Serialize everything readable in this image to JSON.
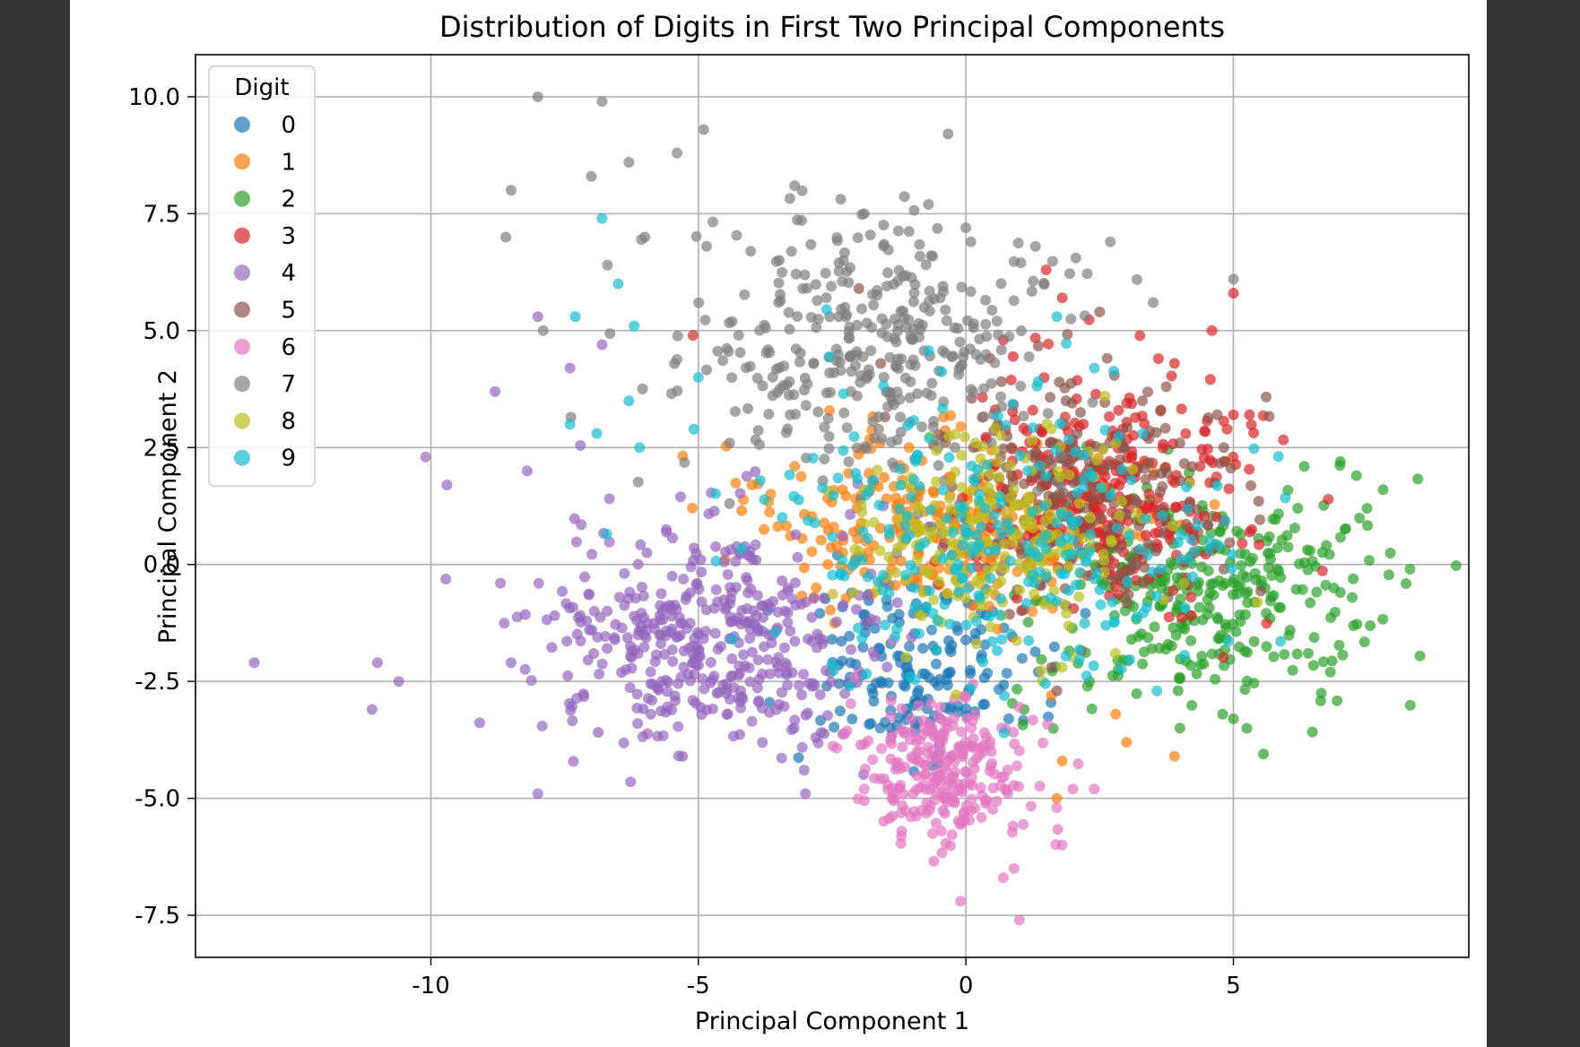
{
  "chart_data": {
    "type": "scatter",
    "title": "Distribution of Digits in First Two Principal Components",
    "xlabel": "Principal Component 1",
    "ylabel": "Principal Component 2",
    "xlim": [
      -14.4,
      9.4
    ],
    "ylim": [
      -8.4,
      10.9
    ],
    "xticks": [
      -10,
      -5,
      0,
      5
    ],
    "xtick_labels": [
      "-10",
      "-5",
      "0",
      "5"
    ],
    "yticks": [
      -7.5,
      -5.0,
      -2.5,
      0.0,
      2.5,
      5.0,
      7.5,
      10.0
    ],
    "ytick_labels": [
      "-7.5",
      "-5.0",
      "-2.5",
      "0.0",
      "2.5",
      "5.0",
      "7.5",
      "10.0"
    ],
    "grid": true,
    "legend": {
      "title": "Digit",
      "placement": "top-left"
    },
    "series": [
      {
        "name": "0",
        "color": "#1f77b4",
        "center": [
          -1.0,
          -2.2
        ],
        "spread": [
          1.1,
          0.9
        ],
        "n": 170,
        "points": [
          [
            -2.6,
            -2.6
          ],
          [
            -2.5,
            -1.6
          ],
          [
            -1.6,
            -3.5
          ],
          [
            0.8,
            -3.3
          ],
          [
            -2.4,
            0.2
          ],
          [
            0.5,
            -1.0
          ]
        ]
      },
      {
        "name": "1",
        "color": "#ff7f0e",
        "center": [
          -0.6,
          0.8
        ],
        "spread": [
          1.8,
          0.9
        ],
        "n": 270,
        "points": [
          [
            -4.0,
            1.7
          ],
          [
            -3.2,
            2.1
          ],
          [
            -1.6,
            2.6
          ],
          [
            1.8,
            -4.2
          ],
          [
            1.7,
            -5.0
          ],
          [
            3.0,
            -3.8
          ],
          [
            3.9,
            -4.1
          ],
          [
            2.8,
            -3.2
          ],
          [
            1.6,
            -2.8
          ]
        ]
      },
      {
        "name": "2",
        "color": "#2ca02c",
        "center": [
          4.5,
          -0.6
        ],
        "spread": [
          1.6,
          1.2
        ],
        "n": 330,
        "points": [
          [
            7.0,
            2.2
          ],
          [
            7.3,
            1.9
          ],
          [
            7.8,
            1.6
          ],
          [
            8.3,
            -0.1
          ],
          [
            7.5,
            1.2
          ],
          [
            5.0,
            -3.3
          ],
          [
            4.8,
            -3.2
          ],
          [
            4.0,
            -3.5
          ],
          [
            7.0,
            -0.6
          ],
          [
            6.4,
            -1.9
          ]
        ]
      },
      {
        "name": "3",
        "color": "#d62728",
        "center": [
          2.6,
          1.5
        ],
        "spread": [
          1.3,
          1.2
        ],
        "n": 330,
        "points": [
          [
            1.5,
            6.3
          ],
          [
            1.8,
            5.7
          ],
          [
            5.0,
            5.8
          ],
          [
            4.6,
            5.0
          ],
          [
            5.0,
            3.2
          ],
          [
            5.3,
            3.2
          ],
          [
            -5.1,
            4.9
          ],
          [
            3.6,
            4.4
          ],
          [
            3.9,
            4.3
          ],
          [
            0.7,
            4.8
          ]
        ]
      },
      {
        "name": "4",
        "color": "#9467bd",
        "center": [
          -4.7,
          -1.7
        ],
        "spread": [
          1.6,
          1.3
        ],
        "n": 430,
        "points": [
          [
            -13.3,
            -2.1
          ],
          [
            -11.0,
            -2.1
          ],
          [
            -11.1,
            -3.1
          ],
          [
            -10.6,
            -2.5
          ],
          [
            -10.1,
            2.3
          ],
          [
            -9.7,
            1.7
          ],
          [
            -8.8,
            3.7
          ],
          [
            -8.0,
            5.3
          ],
          [
            -7.4,
            4.2
          ],
          [
            -6.8,
            4.7
          ],
          [
            -8.0,
            -4.9
          ],
          [
            -8.7,
            -0.4
          ],
          [
            -8.5,
            -2.1
          ],
          [
            -3.0,
            -4.9
          ],
          [
            -8.2,
            2.0
          ]
        ]
      },
      {
        "name": "5",
        "color": "#8c564b",
        "center": [
          2.2,
          1.6
        ],
        "spread": [
          1.4,
          1.2
        ],
        "n": 220,
        "points": [
          [
            2.5,
            5.4
          ],
          [
            4.7,
            3.2
          ],
          [
            -2.0,
            5.9
          ],
          [
            4.0,
            2.6
          ],
          [
            1.6,
            -2.2
          ],
          [
            1.7,
            -2.7
          ],
          [
            3.3,
            3.5
          ],
          [
            0.6,
            3.0
          ]
        ]
      },
      {
        "name": "6",
        "color": "#e377c2",
        "center": [
          -0.4,
          -4.4
        ],
        "spread": [
          0.8,
          0.8
        ],
        "n": 260,
        "points": [
          [
            -0.1,
            -7.2
          ],
          [
            1.0,
            -7.6
          ],
          [
            0.7,
            -6.7
          ],
          [
            0.9,
            -6.5
          ],
          [
            1.8,
            -6.0
          ],
          [
            1.7,
            -5.2
          ],
          [
            -1.2,
            -5.7
          ],
          [
            -1.9,
            -4.8
          ],
          [
            2.0,
            -4.8
          ],
          [
            2.4,
            -4.8
          ]
        ]
      },
      {
        "name": "7",
        "color": "#7f7f7f",
        "center": [
          -1.5,
          4.5
        ],
        "spread": [
          1.7,
          1.4
        ],
        "n": 360,
        "points": [
          [
            -8.0,
            10.0
          ],
          [
            -6.8,
            9.9
          ],
          [
            -4.9,
            9.3
          ],
          [
            -8.5,
            8.0
          ],
          [
            -8.6,
            7.0
          ],
          [
            -7.0,
            8.3
          ],
          [
            -6.3,
            8.6
          ],
          [
            -5.4,
            8.8
          ],
          [
            -6.7,
            6.4
          ],
          [
            -6.0,
            7.0
          ],
          [
            -0.7,
            7.7
          ],
          [
            -1.9,
            7.5
          ],
          [
            1.3,
            6.8
          ],
          [
            2.7,
            6.9
          ],
          [
            5.0,
            6.1
          ],
          [
            3.5,
            5.6
          ],
          [
            -3.2,
            8.1
          ],
          [
            -7.9,
            5.0
          ]
        ]
      },
      {
        "name": "8",
        "color": "#bcbd22",
        "center": [
          0.7,
          0.6
        ],
        "spread": [
          1.4,
          1.1
        ],
        "n": 240,
        "points": [
          [
            -0.8,
            -0.6
          ],
          [
            2.6,
            3.6
          ],
          [
            1.8,
            -2.2
          ],
          [
            0.2,
            -1.7
          ],
          [
            1.6,
            2.9
          ],
          [
            -1.9,
            1.6
          ]
        ]
      },
      {
        "name": "9",
        "color": "#17becf",
        "center": [
          0.8,
          0.6
        ],
        "spread": [
          2.2,
          1.5
        ],
        "n": 280,
        "points": [
          [
            -6.8,
            7.4
          ],
          [
            -6.5,
            6.0
          ],
          [
            -7.3,
            5.3
          ],
          [
            -6.2,
            5.1
          ],
          [
            -7.4,
            3.0
          ],
          [
            -6.3,
            3.5
          ],
          [
            -6.1,
            2.5
          ],
          [
            -5.0,
            4.0
          ],
          [
            -6.9,
            2.8
          ],
          [
            1.7,
            5.3
          ],
          [
            2.4,
            4.2
          ]
        ]
      }
    ]
  }
}
